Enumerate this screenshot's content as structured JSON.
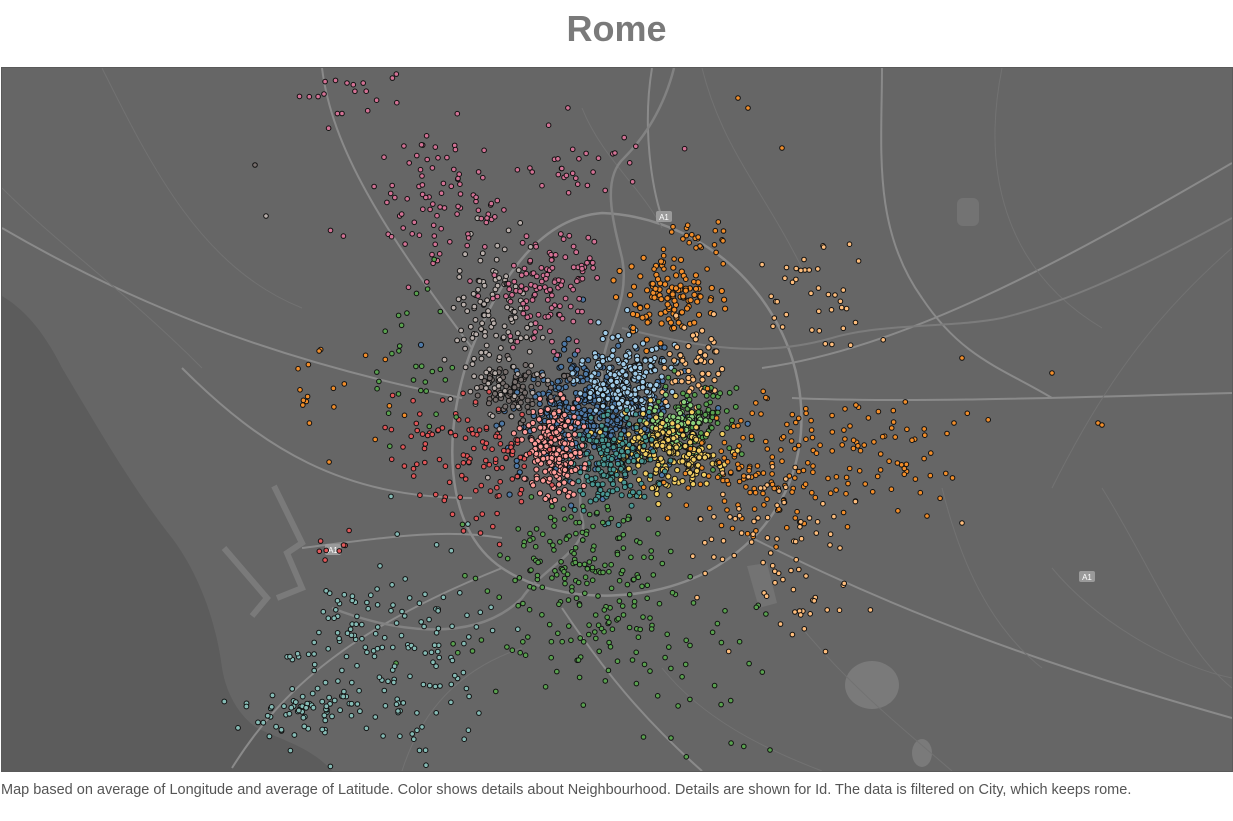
{
  "title": "Rome",
  "caption": "Map based on average of Longitude and average of Latitude.  Color shows details about Neighbourhood.  Details are shown for Id. The data is filtered on City, which keeps rome.",
  "road_labels": [
    "A1",
    "A1",
    "A1"
  ],
  "colors": {
    "map_background": "#666666",
    "sea": "#5e5e5e",
    "road": "#8a8a8a",
    "marker_outline": "#111111"
  },
  "neighbourhood_palette": [
    "#4e79a7",
    "#a0cbe8",
    "#f28e2b",
    "#ffbe7d",
    "#59a14f",
    "#8cd17d",
    "#b6992d",
    "#f1ce63",
    "#499894",
    "#86bcb6",
    "#e15759",
    "#ff9d9a",
    "#79706e",
    "#bab0ac",
    "#d37295",
    "#fabfd2"
  ]
}
